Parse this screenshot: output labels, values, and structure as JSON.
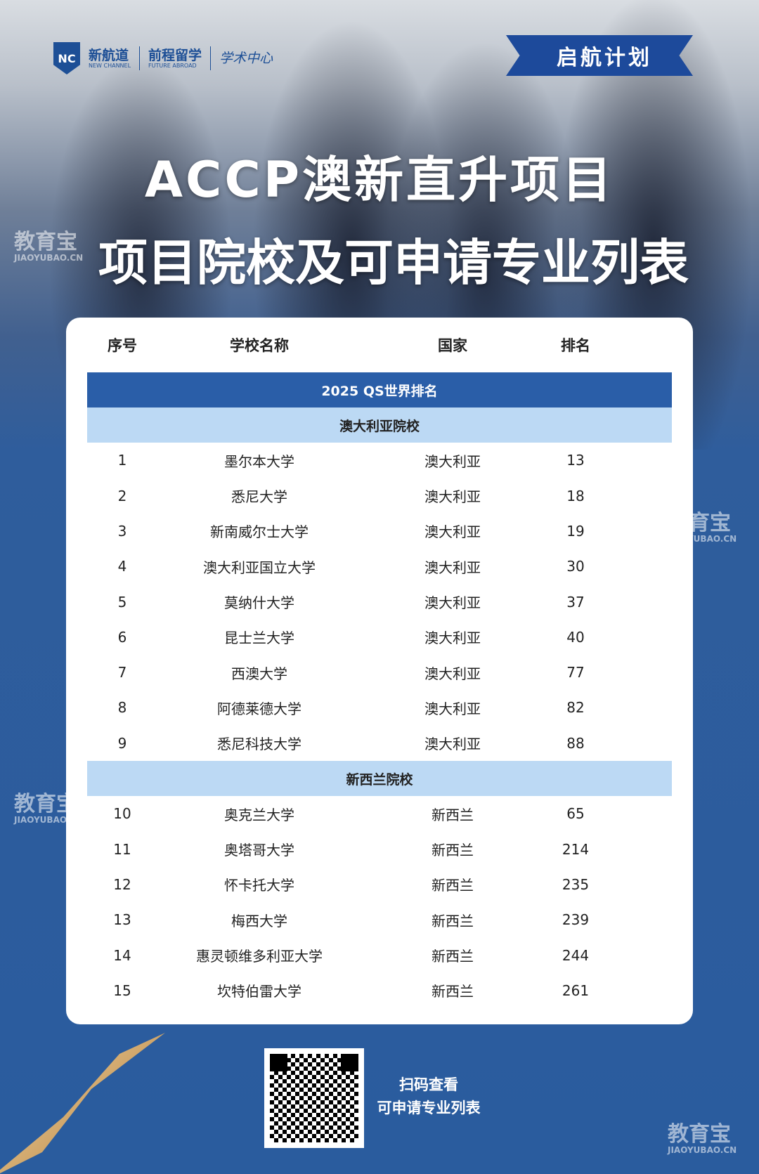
{
  "logos": {
    "brand1": "新航道",
    "brand1_en": "NEW CHANNEL",
    "brand2": "前程留学",
    "brand2_en": "FUTURE ABROAD",
    "brand3": "学术中心"
  },
  "badge": "启航计划",
  "title_line1": "ACCP澳新直升项目",
  "title_line2": "项目院校及可申请专业列表",
  "watermark": {
    "cn": "教育宝",
    "en": "JIAOYUBAO.CN"
  },
  "table": {
    "headers": [
      "序号",
      "学校名称",
      "国家",
      "排名"
    ],
    "ranking_title": "2025 QS世界排名",
    "sections": [
      {
        "title": "澳大利亚院校",
        "rows": [
          [
            "1",
            "墨尔本大学",
            "澳大利亚",
            "13"
          ],
          [
            "2",
            "悉尼大学",
            "澳大利亚",
            "18"
          ],
          [
            "3",
            "新南威尔士大学",
            "澳大利亚",
            "19"
          ],
          [
            "4",
            "澳大利亚国立大学",
            "澳大利亚",
            "30"
          ],
          [
            "5",
            "莫纳什大学",
            "澳大利亚",
            "37"
          ],
          [
            "6",
            "昆士兰大学",
            "澳大利亚",
            "40"
          ],
          [
            "7",
            "西澳大学",
            "澳大利亚",
            "77"
          ],
          [
            "8",
            "阿德莱德大学",
            "澳大利亚",
            "82"
          ],
          [
            "9",
            "悉尼科技大学",
            "澳大利亚",
            "88"
          ]
        ]
      },
      {
        "title": "新西兰院校",
        "rows": [
          [
            "10",
            "奥克兰大学",
            "新西兰",
            "65"
          ],
          [
            "11",
            "奥塔哥大学",
            "新西兰",
            "214"
          ],
          [
            "12",
            "怀卡托大学",
            "新西兰",
            "235"
          ],
          [
            "13",
            "梅西大学",
            "新西兰",
            "239"
          ],
          [
            "14",
            "惠灵顿维多利亚大学",
            "新西兰",
            "244"
          ],
          [
            "15",
            "坎特伯雷大学",
            "新西兰",
            "261"
          ]
        ]
      }
    ]
  },
  "qr": {
    "line1": "扫码查看",
    "line2": "可申请专业列表"
  },
  "colors": {
    "primary": "#2a5ea8",
    "section": "#bcd9f4",
    "background": "#2a5c9e"
  }
}
